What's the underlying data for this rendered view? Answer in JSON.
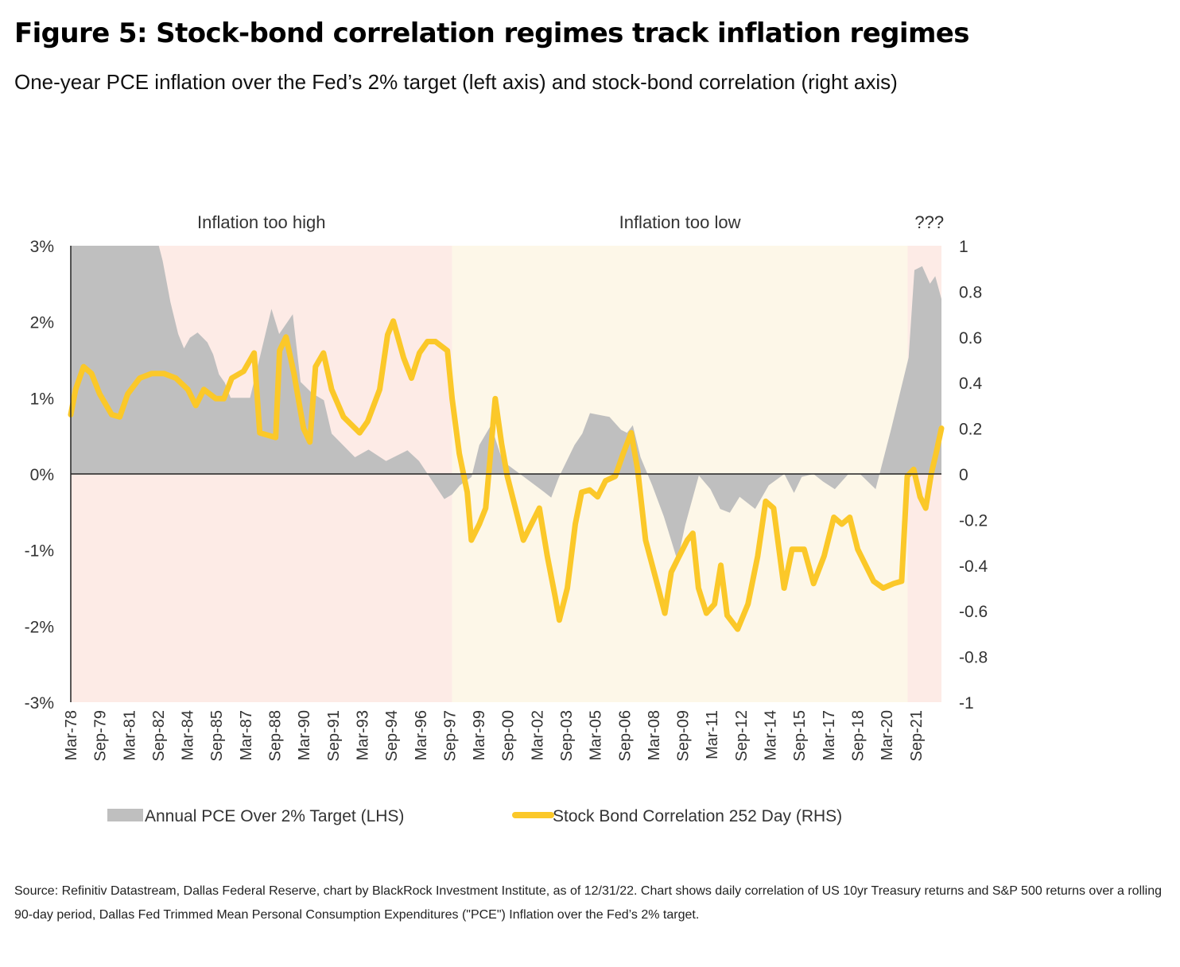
{
  "header": {
    "title": "Figure 5: Stock-bond correlation regimes track inflation regimes",
    "subtitle": "One-year PCE inflation over the Fed’s 2% target (left axis) and stock-bond correlation (right axis)"
  },
  "footer": {
    "source": "Source: Refinitiv Datastream, Dallas Federal Reserve, chart by BlackRock Investment Institute, as of 12/31/22. Chart shows daily correlation of US 10yr Treasury returns and S&P 500 returns over a rolling 90-day period, Dallas Fed Trimmed Mean Personal Consumption Expenditures (\"PCE\") Inflation over the Fed’s 2% target."
  },
  "colors": {
    "pce_area": "#bfbfbf",
    "correlation_line": "#fbc829",
    "regime_high": "#fdebe6",
    "regime_low": "#fdf7e8",
    "axis": "#333333"
  },
  "chart_data": {
    "type": "area",
    "title": "",
    "xlabel": "",
    "ylabel_left": "",
    "ylabel_right": "",
    "x_range": [
      1978.17,
      2022.99
    ],
    "ylim_left": [
      -3,
      3
    ],
    "ylim_right": [
      -1,
      1
    ],
    "yticks_left": [
      "3%",
      "2%",
      "1%",
      "0%",
      "-1%",
      "-2%",
      "-3%"
    ],
    "yticks_left_values": [
      3,
      2,
      1,
      0,
      -1,
      -2,
      -3
    ],
    "yticks_right": [
      "1",
      "0.8",
      "0.6",
      "0.4",
      "0.2",
      "0",
      "-0.2",
      "-0.4",
      "-0.6",
      "-0.8",
      "-1"
    ],
    "yticks_right_values": [
      1,
      0.8,
      0.6,
      0.4,
      0.2,
      0,
      -0.2,
      -0.4,
      -0.6,
      -0.8,
      -1
    ],
    "xtick_labels": [
      "Mar-78",
      "Sep-79",
      "Mar-81",
      "Sep-82",
      "Mar-84",
      "Sep-85",
      "Mar-87",
      "Sep-88",
      "Mar-90",
      "Sep-91",
      "Mar-93",
      "Sep-94",
      "Mar-96",
      "Sep-97",
      "Mar-99",
      "Sep-00",
      "Mar-02",
      "Sep-03",
      "Mar-05",
      "Sep-06",
      "Mar-08",
      "Sep-09",
      "Mar-11",
      "Sep-12",
      "Mar-14",
      "Sep-15",
      "Mar-17",
      "Sep-18",
      "Mar-20",
      "Sep-21"
    ],
    "xtick_values": [
      1978.17,
      1979.67,
      1981.17,
      1982.67,
      1984.17,
      1985.67,
      1987.17,
      1988.67,
      1990.17,
      1991.67,
      1993.17,
      1994.67,
      1996.17,
      1997.67,
      1999.17,
      2000.67,
      2002.17,
      2003.67,
      2005.17,
      2006.67,
      2008.17,
      2009.67,
      2011.17,
      2012.67,
      2014.17,
      2015.67,
      2017.17,
      2018.67,
      2020.17,
      2021.67
    ],
    "grid": false,
    "legend_position": "bottom",
    "regions": [
      {
        "label": "Inflation too high",
        "start": 1978.17,
        "end": 1997.8,
        "color_key": "regime_high"
      },
      {
        "label": "Inflation too low",
        "start": 1997.8,
        "end": 2021.25,
        "color_key": "regime_low"
      },
      {
        "label": "???",
        "start": 2021.25,
        "end": 2022.99,
        "color_key": "regime_high"
      }
    ],
    "zero_line": 0,
    "series": [
      {
        "name": "Annual PCE Over 2% Target (LHS)",
        "type": "area",
        "axis": "left",
        "x": [
          1978.17,
          1982.7,
          1982.9,
          1983.3,
          1983.7,
          1984.0,
          1984.3,
          1984.7,
          1985.2,
          1985.5,
          1985.8,
          1986.1,
          1986.4,
          1987.4,
          1988.5,
          1988.9,
          1989.6,
          1990.0,
          1990.6,
          1991.2,
          1991.6,
          1992.8,
          1993.5,
          1994.4,
          1995.5,
          1996.1,
          1996.9,
          1997.4,
          1997.8,
          1998.2,
          1998.8,
          1999.2,
          1999.8,
          2000.4,
          2001.4,
          2002.5,
          2002.9,
          2003.3,
          2003.7,
          2004.1,
          2004.5,
          2004.9,
          2005.9,
          2006.5,
          2006.8,
          2007.1,
          2007.5,
          2008.1,
          2008.7,
          2009.4,
          2009.8,
          2010.5,
          2011.1,
          2011.6,
          2012.1,
          2012.6,
          2013.4,
          2014.1,
          2014.9,
          2015.4,
          2015.8,
          2016.4,
          2016.9,
          2017.5,
          2018.2,
          2018.8,
          2019.6,
          2020.4,
          2021.3,
          2021.6,
          2022.0,
          2022.4,
          2022.67,
          2022.99
        ],
        "values": [
          3.0,
          3.0,
          2.8,
          2.26,
          1.84,
          1.65,
          1.79,
          1.86,
          1.73,
          1.57,
          1.31,
          1.2,
          1.0,
          1.0,
          2.17,
          1.84,
          2.1,
          1.21,
          1.06,
          0.97,
          0.53,
          0.22,
          0.32,
          0.17,
          0.31,
          0.17,
          -0.14,
          -0.33,
          -0.27,
          -0.15,
          -0.04,
          0.38,
          0.64,
          0.17,
          -0.02,
          -0.23,
          -0.31,
          -0.04,
          0.17,
          0.38,
          0.53,
          0.8,
          0.75,
          0.58,
          0.54,
          0.64,
          0.22,
          -0.15,
          -0.56,
          -1.14,
          -0.67,
          -0.02,
          -0.2,
          -0.46,
          -0.51,
          -0.3,
          -0.46,
          -0.15,
          0.0,
          -0.25,
          -0.04,
          0.0,
          -0.1,
          -0.2,
          0.0,
          0.0,
          -0.2,
          0.59,
          1.53,
          2.68,
          2.73,
          2.5,
          2.6,
          2.3
        ]
      },
      {
        "name": "Stock Bond Correlation 252 Day (RHS)",
        "type": "line",
        "axis": "right",
        "x": [
          1978.17,
          1978.42,
          1978.83,
          1979.24,
          1979.66,
          1980.28,
          1980.69,
          1981.1,
          1981.72,
          1982.34,
          1982.96,
          1983.58,
          1984.2,
          1984.61,
          1985.02,
          1985.64,
          1986.05,
          1986.46,
          1987.07,
          1987.61,
          1987.9,
          1988.72,
          1988.92,
          1989.25,
          1989.66,
          1990.15,
          1990.48,
          1990.77,
          1991.18,
          1991.6,
          1992.21,
          1993.04,
          1993.45,
          1994.07,
          1994.48,
          1994.77,
          1995.3,
          1995.71,
          1996.12,
          1996.53,
          1996.94,
          1997.56,
          1997.8,
          1998.17,
          1998.58,
          1998.79,
          1999.2,
          1999.53,
          1999.82,
          2000.02,
          2000.35,
          2000.64,
          2001.06,
          2001.47,
          2001.88,
          2002.29,
          2002.7,
          2003.11,
          2003.32,
          2003.73,
          2004.14,
          2004.47,
          2004.88,
          2005.29,
          2005.7,
          2006.2,
          2006.61,
          2007.02,
          2007.35,
          2007.76,
          2008.26,
          2008.75,
          2009.08,
          2009.49,
          2009.91,
          2010.19,
          2010.48,
          2010.89,
          2011.31,
          2011.63,
          2011.96,
          2012.5,
          2013.03,
          2013.53,
          2013.94,
          2014.35,
          2014.89,
          2015.3,
          2015.92,
          2016.41,
          2016.95,
          2017.45,
          2017.86,
          2018.27,
          2018.68,
          2019.09,
          2019.5,
          2019.99,
          2020.53,
          2020.94,
          2021.23,
          2021.56,
          2021.89,
          2022.18,
          2022.46,
          2022.71,
          2022.99
        ],
        "values": [
          0.26,
          0.37,
          0.47,
          0.44,
          0.35,
          0.26,
          0.25,
          0.35,
          0.42,
          0.44,
          0.44,
          0.42,
          0.37,
          0.3,
          0.37,
          0.33,
          0.33,
          0.42,
          0.45,
          0.53,
          0.18,
          0.16,
          0.54,
          0.6,
          0.44,
          0.2,
          0.14,
          0.47,
          0.53,
          0.37,
          0.25,
          0.18,
          0.23,
          0.37,
          0.61,
          0.67,
          0.51,
          0.42,
          0.53,
          0.58,
          0.58,
          0.54,
          0.33,
          0.09,
          -0.08,
          -0.29,
          -0.22,
          -0.15,
          0.13,
          0.33,
          0.13,
          -0.01,
          -0.15,
          -0.29,
          -0.22,
          -0.15,
          -0.36,
          -0.54,
          -0.64,
          -0.5,
          -0.22,
          -0.08,
          -0.07,
          -0.1,
          -0.03,
          -0.01,
          0.09,
          0.18,
          0.02,
          -0.29,
          -0.45,
          -0.61,
          -0.43,
          -0.36,
          -0.29,
          -0.26,
          -0.5,
          -0.61,
          -0.57,
          -0.4,
          -0.62,
          -0.68,
          -0.57,
          -0.36,
          -0.12,
          -0.15,
          -0.5,
          -0.33,
          -0.33,
          -0.48,
          -0.36,
          -0.19,
          -0.22,
          -0.19,
          -0.33,
          -0.4,
          -0.47,
          -0.5,
          -0.48,
          -0.47,
          -0.01,
          0.02,
          -0.1,
          -0.15,
          0.0,
          0.09,
          0.2
        ]
      }
    ]
  }
}
